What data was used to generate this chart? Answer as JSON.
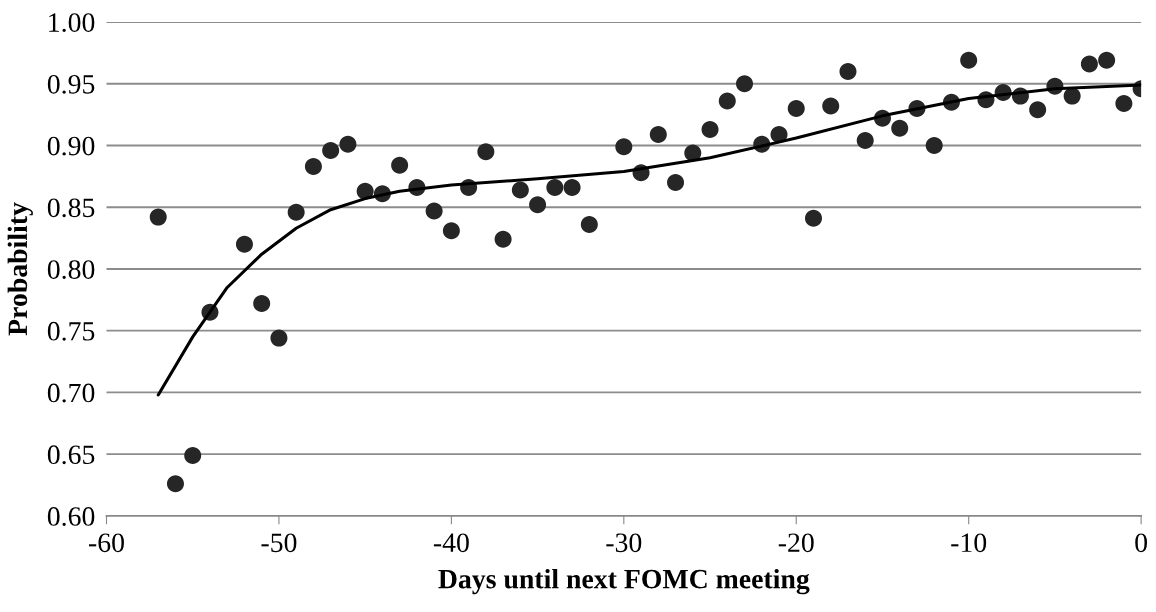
{
  "chart_data": {
    "type": "scatter",
    "xlabel": "Days until next FOMC meeting",
    "ylabel": "Probability",
    "xlim": [
      -60,
      0
    ],
    "xticks": [
      -60,
      -50,
      -40,
      -30,
      -20,
      -10,
      0
    ],
    "ylim": [
      0.6,
      1.0
    ],
    "yticks": [
      {
        "value": 0.6,
        "label": "0.60"
      },
      {
        "value": 0.65,
        "label": "0.65"
      },
      {
        "value": 0.7,
        "label": "0.70"
      },
      {
        "value": 0.75,
        "label": "0.75"
      },
      {
        "value": 0.8,
        "label": "0.80"
      },
      {
        "value": 0.85,
        "label": "0.85"
      },
      {
        "value": 0.9,
        "label": "0.90"
      },
      {
        "value": 0.95,
        "label": "0.95"
      },
      {
        "value": 1.0,
        "label": "1.00"
      }
    ],
    "grid": "y",
    "marker": "circle",
    "series": [
      {
        "color": "#262626",
        "x": [
          -57,
          -56,
          -55,
          -54,
          -52,
          -51,
          -50,
          -49,
          -48,
          -47,
          -46,
          -45,
          -44,
          -43,
          -42,
          -41,
          -40,
          -39,
          -38,
          -37,
          -36,
          -35,
          -34,
          -33,
          -32,
          -30,
          -29,
          -28,
          -27,
          -26,
          -25,
          -24,
          -23,
          -22,
          -21,
          -20,
          -19,
          -18,
          -17,
          -16,
          -15,
          -14,
          -13,
          -12,
          -11,
          -10,
          -9,
          -8,
          -7,
          -6,
          -5,
          -4,
          -3,
          -2,
          -1,
          0
        ],
        "values": [
          0.842,
          0.626,
          0.649,
          0.765,
          0.82,
          0.772,
          0.744,
          0.846,
          0.883,
          0.896,
          0.901,
          0.863,
          0.861,
          0.884,
          0.866,
          0.847,
          0.831,
          0.866,
          0.895,
          0.824,
          0.864,
          0.852,
          0.866,
          0.866,
          0.836,
          0.899,
          0.878,
          0.909,
          0.87,
          0.894,
          0.913,
          0.936,
          0.95,
          0.901,
          0.909,
          0.93,
          0.841,
          0.932,
          0.96,
          0.904,
          0.922,
          0.914,
          0.93,
          0.9,
          0.935,
          0.969,
          0.937,
          0.943,
          0.94,
          0.929,
          0.948,
          0.94,
          0.966,
          0.969,
          0.934,
          0.946
        ]
      },
      {
        "type": "line",
        "color": "#000000",
        "marker": "none",
        "line_style": "solid",
        "x": [
          -57,
          -55,
          -53,
          -51,
          -49,
          -47,
          -45,
          -43,
          -40,
          -35,
          -30,
          -25,
          -20,
          -15,
          -10,
          -5,
          0
        ],
        "values": [
          0.698,
          0.745,
          0.785,
          0.812,
          0.833,
          0.848,
          0.857,
          0.863,
          0.868,
          0.873,
          0.879,
          0.89,
          0.906,
          0.924,
          0.938,
          0.946,
          0.949
        ]
      }
    ]
  }
}
